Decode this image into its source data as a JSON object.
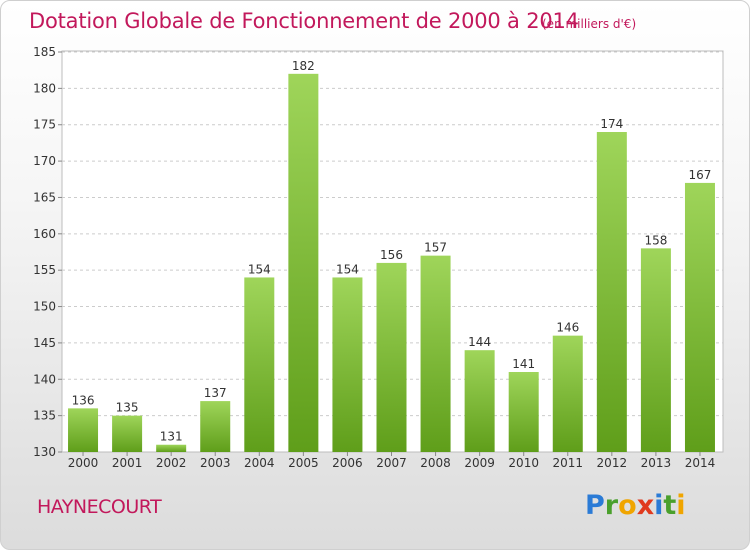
{
  "header": {
    "title": "Dotation Globale de Fonctionnement de 2000 à 2014",
    "subtitle": "(en milliers d'€)"
  },
  "commune": "HAYNECOURT",
  "logo": {
    "letters": [
      "P",
      "r",
      "o",
      "x",
      "i",
      "t",
      "i"
    ]
  },
  "colors": {
    "title": "#c2185b",
    "bar_top": "#9fd55a",
    "bar_bottom": "#5f9e1a",
    "grid": "#cccccc"
  },
  "chart_data": {
    "type": "bar",
    "title": "Dotation Globale de Fonctionnement de 2000 à 2014",
    "subtitle": "(en milliers d'€)",
    "xlabel": "",
    "ylabel": "",
    "categories": [
      "2000",
      "2001",
      "2002",
      "2003",
      "2004",
      "2005",
      "2006",
      "2007",
      "2008",
      "2009",
      "2010",
      "2011",
      "2012",
      "2013",
      "2014"
    ],
    "values": [
      136,
      135,
      131,
      137,
      154,
      182,
      154,
      156,
      157,
      144,
      141,
      146,
      174,
      158,
      167
    ],
    "ylim": [
      130,
      185
    ],
    "yticks": [
      130,
      135,
      140,
      145,
      150,
      155,
      160,
      165,
      170,
      175,
      180,
      185
    ],
    "grid": true,
    "data_labels": true
  }
}
